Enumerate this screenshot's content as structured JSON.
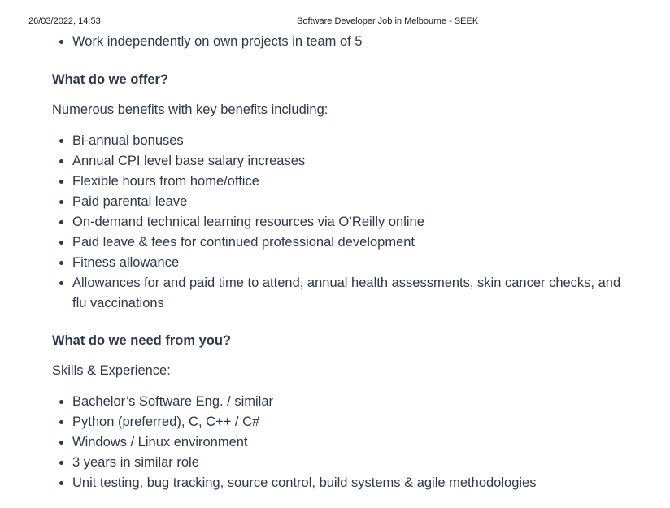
{
  "print_header": {
    "datetime": "26/03/2022, 14:53",
    "page_title": "Software Developer Job in Melbourne - SEEK"
  },
  "intro_list": [
    "Work independently on own projects in team of 5"
  ],
  "offer": {
    "heading": "What do we offer?",
    "lead": "Numerous benefits with key benefits including:",
    "benefits": [
      "Bi-annual bonuses",
      "Annual CPI level base salary increases",
      "Flexible hours from home/office",
      "Paid parental leave",
      "On-demand technical learning resources via O’Reilly online",
      "Paid leave & fees for continued professional development",
      "Fitness allowance",
      "Allowances for and paid time to attend, annual health assessments, skin cancer checks, and flu vaccinations"
    ]
  },
  "needs": {
    "heading": "What do we need from you?",
    "lead": "Skills & Experience:",
    "skills": [
      "Bachelor’s Software Eng. / similar",
      "Python (preferred), C, C++ / C#",
      "Windows / Linux environment",
      "3 years in similar role",
      "Unit testing, bug tracking, source control, build systems & agile methodologies"
    ]
  }
}
